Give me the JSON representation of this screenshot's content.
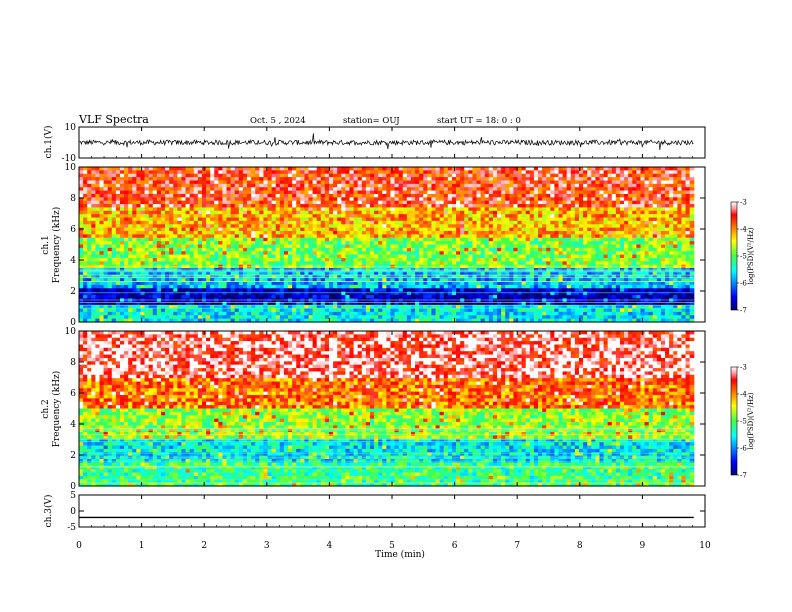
{
  "header": {
    "title": "VLF Spectra",
    "date": "Oct. 5 , 2024",
    "station": "station= OUJ",
    "start": "start  UT =   18: 0  : 0"
  },
  "chart_data": [
    {
      "name": "ch1-waveform",
      "type": "line",
      "ylabel": "ch.1(V)",
      "ylim": [
        -10,
        10
      ],
      "yticks": [
        "10",
        "-10"
      ],
      "baseline": 0,
      "color": "#000000"
    },
    {
      "name": "ch1-spectrogram",
      "type": "heatmap",
      "ylabel": "ch.1\nFrequency (kHz)",
      "ylim": [
        0,
        10
      ],
      "yticks": [
        "0",
        "2",
        "4",
        "6",
        "8",
        "10"
      ],
      "colorbar": {
        "label": "log(PSD)(V²/Hz)",
        "ticks": [
          "-3",
          "-4",
          "-5",
          "-6",
          "-7"
        ],
        "range": [
          -7,
          -3
        ]
      },
      "bands": [
        {
          "from": 0,
          "to": 1.0,
          "level": -5.6
        },
        {
          "from": 1.0,
          "to": 2.2,
          "level": -6.8
        },
        {
          "from": 2.2,
          "to": 3.5,
          "level": -5.8
        },
        {
          "from": 3.5,
          "to": 5.5,
          "level": -4.9
        },
        {
          "from": 5.5,
          "to": 7.5,
          "level": -4.2
        },
        {
          "from": 7.5,
          "to": 10,
          "level": -3.6
        }
      ]
    },
    {
      "name": "ch2-spectrogram",
      "type": "heatmap",
      "ylabel": "ch.2\nFrequency (kHz)",
      "ylim": [
        0,
        10
      ],
      "yticks": [
        "0",
        "2",
        "4",
        "6",
        "8",
        "10"
      ],
      "colorbar": {
        "label": "log(PSD)(V²/Hz)",
        "ticks": [
          "-3",
          "-4",
          "-5",
          "-6",
          "-7"
        ],
        "range": [
          -7,
          -3
        ]
      },
      "bands": [
        {
          "from": 0,
          "to": 1.5,
          "level": -5.2
        },
        {
          "from": 1.5,
          "to": 3.0,
          "level": -5.6
        },
        {
          "from": 3.0,
          "to": 5.0,
          "level": -4.8
        },
        {
          "from": 5.0,
          "to": 7.0,
          "level": -3.9
        },
        {
          "from": 7.0,
          "to": 10,
          "level": -3.3
        }
      ]
    },
    {
      "name": "ch3-waveform",
      "type": "line",
      "ylabel": "ch.3(V)",
      "ylim": [
        -5,
        5
      ],
      "yticks": [
        "5",
        "0",
        "-5"
      ],
      "baseline": -2,
      "color": "#000000"
    }
  ],
  "x_axis": {
    "label": "Time (min)",
    "xlim": [
      0,
      10
    ],
    "data_end": 9.82,
    "ticks": [
      "0",
      "1",
      "2",
      "3",
      "4",
      "5",
      "6",
      "7",
      "8",
      "9",
      "10"
    ]
  }
}
